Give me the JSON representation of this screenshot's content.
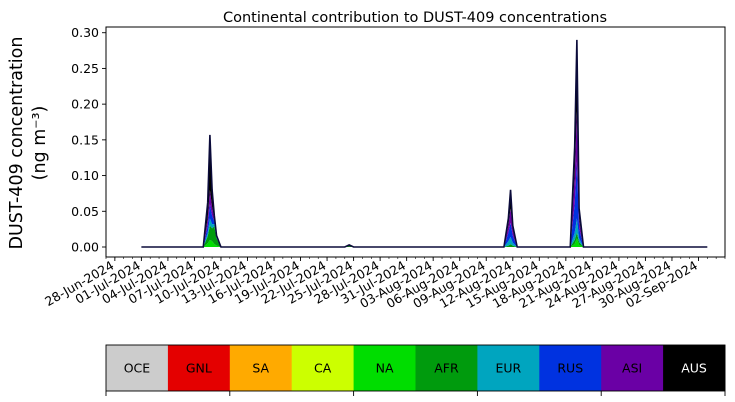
{
  "chart_data": {
    "type": "area",
    "title": "Continental contribution to DUST-409 concentrations",
    "ylabel_line1": "DUST-409 concentration",
    "ylabel_line2": "(ng m⁻³)",
    "ylim": [
      -0.014,
      0.308
    ],
    "xlim": [
      "2024-06-27",
      "2024-09-05"
    ],
    "yticks": [
      "0.00",
      "0.05",
      "0.10",
      "0.15",
      "0.20",
      "0.25",
      "0.30"
    ],
    "xtick_labels": [
      "28-Jun-2024",
      "01-Jul-2024",
      "04-Jul-2024",
      "07-Jul-2024",
      "10-Jul-2024",
      "13-Jul-2024",
      "16-Jul-2024",
      "19-Jul-2024",
      "22-Jul-2024",
      "25-Jul-2024",
      "28-Jul-2024",
      "31-Jul-2024",
      "03-Aug-2024",
      "06-Aug-2024",
      "09-Aug-2024",
      "12-Aug-2024",
      "15-Aug-2024",
      "18-Aug-2024",
      "21-Aug-2024",
      "24-Aug-2024",
      "27-Aug-2024",
      "30-Aug-2024",
      "02-Sep-2024"
    ],
    "x": [
      "2024-07-01",
      "2024-07-08",
      "2024-07-08T12:00",
      "2024-07-08T18:00",
      "2024-07-09",
      "2024-07-09T06:00",
      "2024-07-09T12:00",
      "2024-07-10",
      "2024-07-24",
      "2024-07-24T12:00",
      "2024-07-25",
      "2024-08-11",
      "2024-08-11T12:00",
      "2024-08-11T18:00",
      "2024-08-12",
      "2024-08-12T12:00",
      "2024-08-18",
      "2024-08-18T12:00",
      "2024-08-19",
      "2024-08-19T06:00",
      "2024-08-19T12:00",
      "2024-08-20",
      "2024-09-03"
    ],
    "series": [
      {
        "name": "OCE",
        "values": [
          0,
          0,
          0,
          0,
          0,
          0,
          0,
          0,
          0,
          0,
          0,
          0,
          0,
          0,
          0,
          0,
          0,
          0,
          0,
          0,
          0,
          0,
          0
        ]
      },
      {
        "name": "GNL",
        "values": [
          0,
          0,
          0,
          0,
          0,
          0,
          0,
          0,
          0,
          0,
          0,
          0,
          0,
          0,
          0,
          0,
          0,
          0,
          0,
          0,
          0,
          0,
          0
        ]
      },
      {
        "name": "SA",
        "values": [
          0,
          0,
          0,
          0,
          0,
          0,
          0,
          0,
          0,
          0,
          0,
          0,
          0,
          0,
          0,
          0,
          0,
          0,
          0,
          0,
          0,
          0,
          0
        ]
      },
      {
        "name": "CA",
        "values": [
          0,
          0,
          0,
          0,
          0,
          0,
          0,
          0,
          0,
          0,
          0,
          0,
          0,
          0,
          0,
          0,
          0,
          0,
          0,
          0,
          0,
          0,
          0
        ]
      },
      {
        "name": "NA",
        "values": [
          0,
          0,
          0.005,
          0.01,
          0.008,
          0.004,
          0.002,
          0,
          0,
          0,
          0,
          0,
          0,
          0,
          0,
          0,
          0,
          0,
          0.004,
          0.012,
          0.003,
          0,
          0
        ]
      },
      {
        "name": "AFR",
        "values": [
          0,
          0,
          0.01,
          0.02,
          0.018,
          0.025,
          0.01,
          0,
          0,
          0.001,
          0,
          0,
          0.002,
          0.004,
          0.002,
          0,
          0,
          0,
          0.006,
          0.008,
          0.004,
          0,
          0
        ]
      },
      {
        "name": "EUR",
        "values": [
          0,
          0,
          0.005,
          0.01,
          0.006,
          0.003,
          0.001,
          0,
          0,
          0,
          0,
          0,
          0.006,
          0.01,
          0.004,
          0,
          0,
          0,
          0.01,
          0.02,
          0.005,
          0,
          0
        ]
      },
      {
        "name": "RUS",
        "values": [
          0,
          0,
          0.01,
          0.02,
          0.012,
          0.004,
          0.001,
          0,
          0,
          0,
          0,
          0,
          0.012,
          0.02,
          0.01,
          0,
          0,
          0,
          0.04,
          0.08,
          0.015,
          0,
          0
        ]
      },
      {
        "name": "ASI",
        "values": [
          0,
          0,
          0.01,
          0.02,
          0.012,
          0.004,
          0.001,
          0,
          0,
          0,
          0,
          0,
          0.01,
          0.02,
          0.008,
          0,
          0,
          0,
          0.04,
          0.07,
          0.012,
          0,
          0
        ]
      },
      {
        "name": "AUS",
        "values": [
          0,
          0,
          0.022,
          0.077,
          0.024,
          0.004,
          0.001,
          0,
          0,
          0.002,
          0,
          0,
          0.01,
          0.026,
          0.006,
          0,
          0,
          0,
          0.04,
          0.1,
          0.015,
          0,
          0
        ]
      }
    ],
    "legend": [
      "OCE",
      "GNL",
      "SA",
      "CA",
      "NA",
      "AFR",
      "EUR",
      "RUS",
      "ASI",
      "AUS"
    ],
    "colors": {
      "OCE": "#cccccc",
      "GNL": "#e40000",
      "SA": "#ffaa00",
      "CA": "#ccff00",
      "NA": "#00dd00",
      "AFR": "#009b0d",
      "EUR": "#00a5bf",
      "RUS": "#0032e0",
      "ASI": "#6a00a5",
      "AUS": "#000000"
    },
    "total_line_color": "#0b0b3a",
    "legend_placement": "bottom",
    "grid": false
  }
}
